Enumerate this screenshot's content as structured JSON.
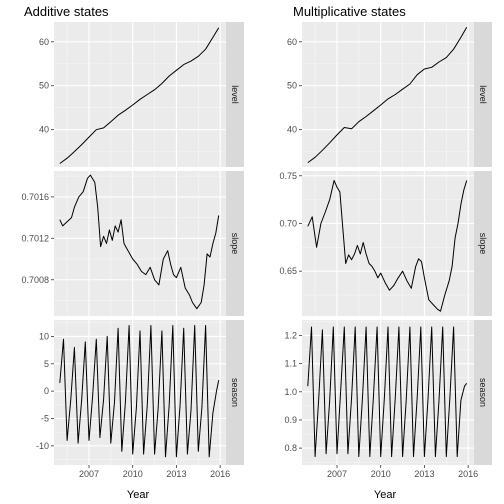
{
  "chart_data": [
    {
      "type": "line",
      "title": "Additive states",
      "xlabel": "Year",
      "x_ticks": [
        2007,
        2010,
        2013,
        2016
      ],
      "x_range": [
        2004.6,
        2016.4
      ],
      "panels": [
        {
          "name": "level",
          "ylim": [
            31.5,
            64.5
          ],
          "yticks": [
            40,
            50,
            60
          ],
          "x": [
            2005.0,
            2005.5,
            2006.0,
            2006.5,
            2007.0,
            2007.5,
            2008.0,
            2008.5,
            2009.0,
            2009.5,
            2010.0,
            2010.5,
            2011.0,
            2011.5,
            2012.0,
            2012.5,
            2013.0,
            2013.5,
            2014.0,
            2014.5,
            2015.0,
            2015.5,
            2015.9
          ],
          "y": [
            32.3,
            33.5,
            35.0,
            36.6,
            38.3,
            40.0,
            40.4,
            41.8,
            43.3,
            44.4,
            45.6,
            46.9,
            48.0,
            49.1,
            50.5,
            52.2,
            53.5,
            54.8,
            55.6,
            56.7,
            58.3,
            61.0,
            63.2
          ]
        },
        {
          "name": "slope",
          "ylim": [
            0.70045,
            0.70185
          ],
          "yticks": [
            0.7008,
            0.7012,
            0.7016
          ],
          "x": [
            2005.0,
            2005.2,
            2005.5,
            2005.8,
            2006.0,
            2006.3,
            2006.6,
            2006.9,
            2007.1,
            2007.4,
            2007.6,
            2007.8,
            2008.0,
            2008.2,
            2008.4,
            2008.6,
            2008.8,
            2009.0,
            2009.2,
            2009.4,
            2009.6,
            2009.8,
            2010.0,
            2010.3,
            2010.6,
            2010.9,
            2011.2,
            2011.5,
            2011.8,
            2012.1,
            2012.4,
            2012.6,
            2012.8,
            2013.0,
            2013.3,
            2013.6,
            2013.9,
            2014.1,
            2014.4,
            2014.7,
            2014.9,
            2015.1,
            2015.3,
            2015.5,
            2015.7,
            2015.9
          ],
          "y": [
            0.70138,
            0.70132,
            0.70136,
            0.7014,
            0.7015,
            0.7016,
            0.70165,
            0.70178,
            0.70181,
            0.70174,
            0.7015,
            0.70112,
            0.70122,
            0.70115,
            0.70128,
            0.70118,
            0.70132,
            0.70126,
            0.70138,
            0.70115,
            0.7011,
            0.70105,
            0.701,
            0.70095,
            0.70088,
            0.70085,
            0.70092,
            0.7008,
            0.70075,
            0.701,
            0.70108,
            0.70095,
            0.70085,
            0.70082,
            0.70092,
            0.70072,
            0.70065,
            0.70058,
            0.70052,
            0.70058,
            0.70075,
            0.70105,
            0.70102,
            0.70115,
            0.70125,
            0.70142
          ]
        },
        {
          "name": "season",
          "ylim": [
            -13.5,
            13.0
          ],
          "yticks": [
            -10,
            -5,
            0,
            5,
            10
          ],
          "x": [
            2005.0,
            2005.25,
            2005.5,
            2005.75,
            2006.0,
            2006.25,
            2006.5,
            2006.75,
            2007.0,
            2007.25,
            2007.5,
            2007.75,
            2008.0,
            2008.25,
            2008.5,
            2008.75,
            2009.0,
            2009.25,
            2009.5,
            2009.75,
            2010.0,
            2010.25,
            2010.5,
            2010.75,
            2011.0,
            2011.25,
            2011.5,
            2011.75,
            2012.0,
            2012.25,
            2012.5,
            2012.75,
            2013.0,
            2013.25,
            2013.5,
            2013.75,
            2014.0,
            2014.25,
            2014.5,
            2014.75,
            2015.0,
            2015.25,
            2015.5,
            2015.75,
            2015.9
          ],
          "y": [
            1.5,
            9.5,
            -9.0,
            -1.5,
            8.0,
            -9.5,
            -1.5,
            9.0,
            -9.0,
            -1.0,
            9.5,
            -8.5,
            -1.5,
            10.0,
            -9.5,
            -2.0,
            11.5,
            -11.0,
            -2.0,
            12.0,
            -11.5,
            -3.0,
            11.0,
            -11.5,
            -2.5,
            12.0,
            -11.5,
            -3.0,
            11.0,
            -12.0,
            -2.5,
            12.0,
            -12.0,
            -2.5,
            11.5,
            -11.5,
            -3.5,
            12.0,
            -11.0,
            -3.0,
            12.0,
            -12.0,
            -4.0,
            0.0,
            2.0
          ]
        }
      ]
    },
    {
      "type": "line",
      "title": "Multiplicative states",
      "xlabel": "Year",
      "x_ticks": [
        2007,
        2010,
        2013,
        2016
      ],
      "x_range": [
        2004.6,
        2016.4
      ],
      "panels": [
        {
          "name": "level",
          "ylim": [
            31.5,
            64.5
          ],
          "yticks": [
            40,
            50,
            60
          ],
          "x": [
            2005.0,
            2005.5,
            2006.0,
            2006.5,
            2007.0,
            2007.5,
            2008.0,
            2008.5,
            2009.0,
            2009.5,
            2010.0,
            2010.5,
            2011.0,
            2011.5,
            2012.0,
            2012.5,
            2013.0,
            2013.5,
            2014.0,
            2014.5,
            2015.0,
            2015.5,
            2015.9
          ],
          "y": [
            32.5,
            33.7,
            35.3,
            37.0,
            38.8,
            40.5,
            40.2,
            41.8,
            43.0,
            44.3,
            45.6,
            47.0,
            48.0,
            49.2,
            50.4,
            52.5,
            53.8,
            54.2,
            55.4,
            56.4,
            58.3,
            61.0,
            63.3
          ]
        },
        {
          "name": "slope",
          "ylim": [
            0.603,
            0.755
          ],
          "yticks": [
            0.65,
            0.7,
            0.75
          ],
          "x": [
            2005.0,
            2005.3,
            2005.6,
            2005.9,
            2006.2,
            2006.5,
            2006.8,
            2007.0,
            2007.2,
            2007.4,
            2007.6,
            2007.8,
            2008.0,
            2008.2,
            2008.4,
            2008.6,
            2008.8,
            2009.0,
            2009.2,
            2009.4,
            2009.6,
            2009.8,
            2010.0,
            2010.3,
            2010.6,
            2010.9,
            2011.2,
            2011.5,
            2011.8,
            2012.1,
            2012.4,
            2012.6,
            2012.8,
            2013.0,
            2013.3,
            2013.6,
            2013.9,
            2014.1,
            2014.4,
            2014.7,
            2014.9,
            2015.1,
            2015.3,
            2015.5,
            2015.7,
            2015.9
          ],
          "y": [
            0.697,
            0.707,
            0.675,
            0.7,
            0.712,
            0.725,
            0.745,
            0.738,
            0.733,
            0.695,
            0.658,
            0.667,
            0.662,
            0.668,
            0.677,
            0.668,
            0.68,
            0.668,
            0.658,
            0.655,
            0.65,
            0.643,
            0.648,
            0.638,
            0.63,
            0.635,
            0.643,
            0.65,
            0.64,
            0.632,
            0.655,
            0.663,
            0.66,
            0.643,
            0.62,
            0.615,
            0.61,
            0.608,
            0.625,
            0.64,
            0.655,
            0.685,
            0.7,
            0.72,
            0.735,
            0.745
          ]
        },
        {
          "name": "season",
          "ylim": [
            0.74,
            1.255
          ],
          "yticks": [
            0.8,
            0.9,
            1.0,
            1.1,
            1.2
          ],
          "x": [
            2005.0,
            2005.25,
            2005.5,
            2005.75,
            2006.0,
            2006.25,
            2006.5,
            2006.75,
            2007.0,
            2007.25,
            2007.5,
            2007.75,
            2008.0,
            2008.25,
            2008.5,
            2008.75,
            2009.0,
            2009.25,
            2009.5,
            2009.75,
            2010.0,
            2010.25,
            2010.5,
            2010.75,
            2011.0,
            2011.25,
            2011.5,
            2011.75,
            2012.0,
            2012.25,
            2012.5,
            2012.75,
            2013.0,
            2013.25,
            2013.5,
            2013.75,
            2014.0,
            2014.25,
            2014.5,
            2014.75,
            2015.0,
            2015.25,
            2015.5,
            2015.75,
            2015.9
          ],
          "y": [
            1.02,
            1.23,
            0.77,
            0.98,
            1.22,
            0.78,
            0.97,
            1.23,
            0.78,
            1.0,
            1.23,
            0.78,
            0.98,
            1.23,
            0.77,
            0.98,
            1.23,
            0.77,
            0.98,
            1.23,
            0.77,
            0.98,
            1.23,
            0.77,
            0.98,
            1.23,
            0.77,
            0.97,
            1.23,
            0.77,
            0.98,
            1.23,
            0.77,
            0.98,
            1.23,
            0.77,
            0.97,
            1.23,
            0.77,
            0.98,
            1.23,
            0.77,
            0.97,
            1.02,
            1.03
          ]
        }
      ]
    }
  ]
}
